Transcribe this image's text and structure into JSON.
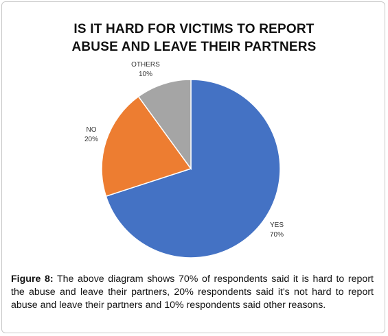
{
  "chart_data": {
    "type": "pie",
    "title_lines": [
      "IS IT HARD FOR VICTIMS TO REPORT",
      "ABUSE AND LEAVE THEIR PARTNERS"
    ],
    "slices": [
      {
        "label": "YES",
        "value": 70,
        "percent_label": "70%",
        "color": "#4472c4"
      },
      {
        "label": "NO",
        "value": 20,
        "percent_label": "20%",
        "color": "#ed7d31"
      },
      {
        "label": "OTHERS",
        "value": 10,
        "percent_label": "10%",
        "color": "#a5a5a5"
      }
    ],
    "start": "12 o'clock",
    "direction": "clockwise"
  },
  "caption": {
    "label": "Figure 8:",
    "text": " The above diagram shows 70% of respondents said it is hard to report the abuse and leave their partners, 20% respondents said it's not hard to report abuse and leave their partners and 10% respondents said other reasons."
  }
}
